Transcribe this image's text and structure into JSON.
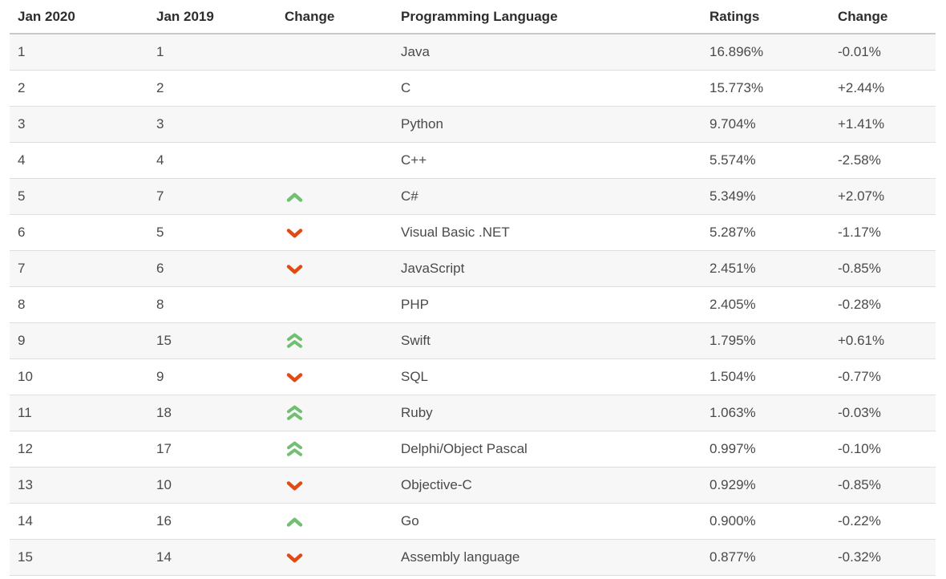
{
  "table": {
    "columns": [
      {
        "key": "rank_2020",
        "label": "Jan 2020"
      },
      {
        "key": "rank_2019",
        "label": "Jan 2019"
      },
      {
        "key": "change_dir",
        "label": "Change"
      },
      {
        "key": "language",
        "label": "Programming Language"
      },
      {
        "key": "rating",
        "label": "Ratings"
      },
      {
        "key": "change_pct",
        "label": "Change"
      }
    ],
    "rows": [
      {
        "rank_2020": "1",
        "rank_2019": "1",
        "change": "none",
        "language": "Java",
        "rating": "16.896%",
        "change_pct": "-0.01%"
      },
      {
        "rank_2020": "2",
        "rank_2019": "2",
        "change": "none",
        "language": "C",
        "rating": "15.773%",
        "change_pct": "+2.44%"
      },
      {
        "rank_2020": "3",
        "rank_2019": "3",
        "change": "none",
        "language": "Python",
        "rating": "9.704%",
        "change_pct": "+1.41%"
      },
      {
        "rank_2020": "4",
        "rank_2019": "4",
        "change": "none",
        "language": "C++",
        "rating": "5.574%",
        "change_pct": "-2.58%"
      },
      {
        "rank_2020": "5",
        "rank_2019": "7",
        "change": "up",
        "language": "C#",
        "rating": "5.349%",
        "change_pct": "+2.07%"
      },
      {
        "rank_2020": "6",
        "rank_2019": "5",
        "change": "down",
        "language": "Visual Basic .NET",
        "rating": "5.287%",
        "change_pct": "-1.17%"
      },
      {
        "rank_2020": "7",
        "rank_2019": "6",
        "change": "down",
        "language": "JavaScript",
        "rating": "2.451%",
        "change_pct": "-0.85%"
      },
      {
        "rank_2020": "8",
        "rank_2019": "8",
        "change": "none",
        "language": "PHP",
        "rating": "2.405%",
        "change_pct": "-0.28%"
      },
      {
        "rank_2020": "9",
        "rank_2019": "15",
        "change": "up2",
        "language": "Swift",
        "rating": "1.795%",
        "change_pct": "+0.61%"
      },
      {
        "rank_2020": "10",
        "rank_2019": "9",
        "change": "down",
        "language": "SQL",
        "rating": "1.504%",
        "change_pct": "-0.77%"
      },
      {
        "rank_2020": "11",
        "rank_2019": "18",
        "change": "up2",
        "language": "Ruby",
        "rating": "1.063%",
        "change_pct": "-0.03%"
      },
      {
        "rank_2020": "12",
        "rank_2019": "17",
        "change": "up2",
        "language": "Delphi/Object Pascal",
        "rating": "0.997%",
        "change_pct": "-0.10%"
      },
      {
        "rank_2020": "13",
        "rank_2019": "10",
        "change": "down",
        "language": "Objective-C",
        "rating": "0.929%",
        "change_pct": "-0.85%"
      },
      {
        "rank_2020": "14",
        "rank_2019": "16",
        "change": "up",
        "language": "Go",
        "rating": "0.900%",
        "change_pct": "-0.22%"
      },
      {
        "rank_2020": "15",
        "rank_2019": "14",
        "change": "down",
        "language": "Assembly language",
        "rating": "0.877%",
        "change_pct": "-0.32%"
      }
    ]
  },
  "colors": {
    "up_arrow": "#72be72",
    "down_arrow": "#e04a15",
    "row_stripe": "#f7f7f7",
    "row_border": "#dedede",
    "header_border": "#c9c9c9",
    "body_text": "#4a4a4a",
    "header_text": "#2d2d2d"
  },
  "icons": {
    "up": "chevron-up-icon",
    "up2": "double-chevron-up-icon",
    "down": "chevron-down-icon"
  }
}
